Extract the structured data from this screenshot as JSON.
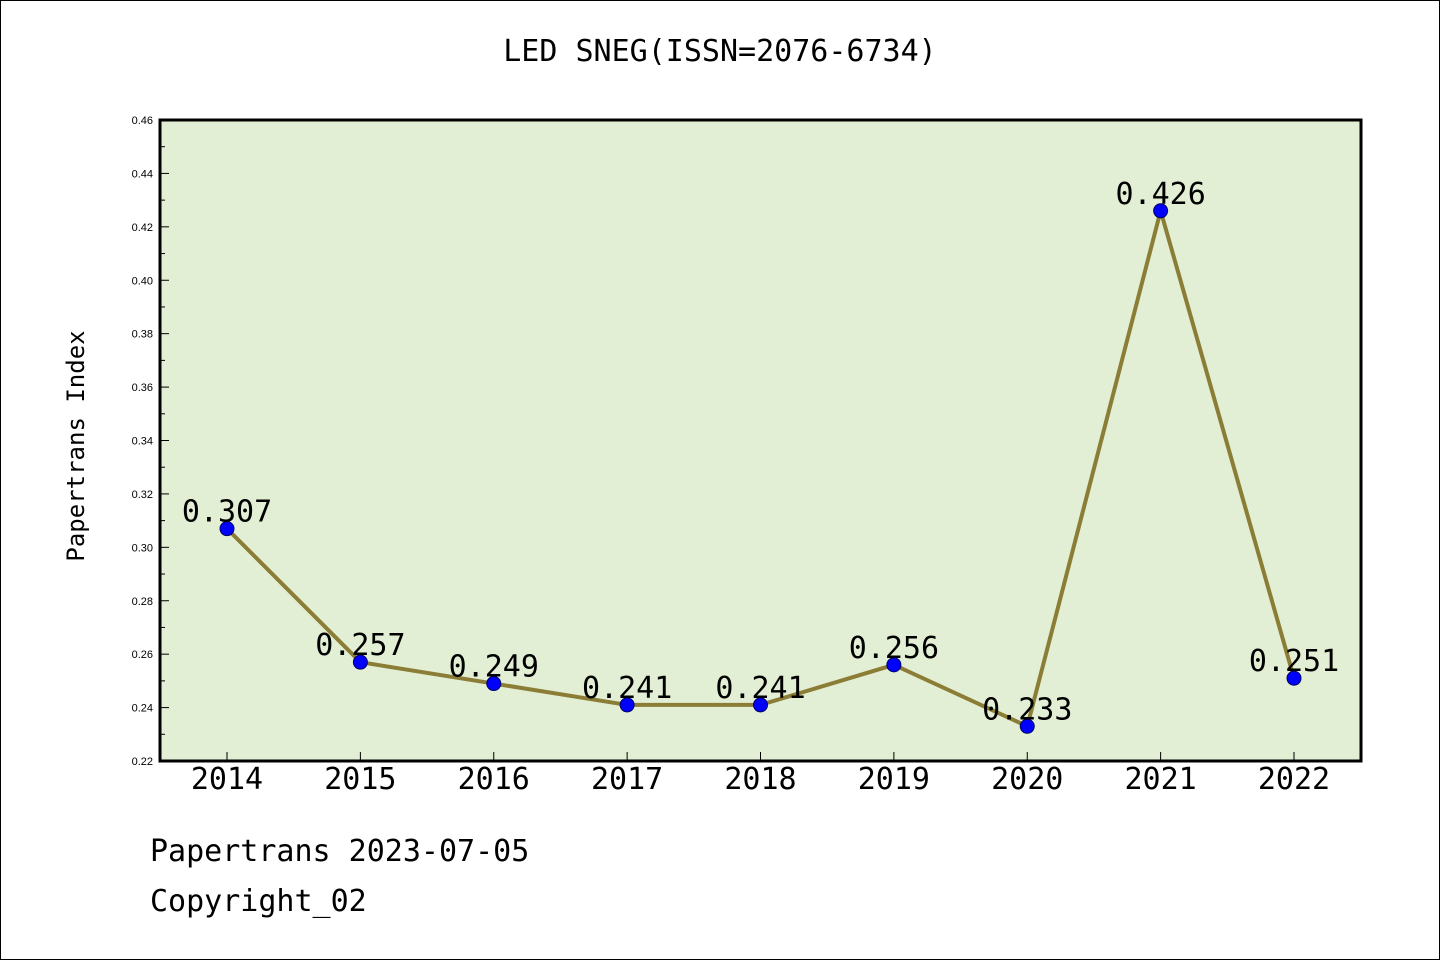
{
  "title": "LED SNEG(ISSN=2076-6734)",
  "footer": {
    "date_text": "Papertrans 2023-07-05",
    "copyright_text": "Copyright_02"
  },
  "colors": {
    "plot_background": "#e2efd4",
    "line": "#8b7d35",
    "marker": "#0000ff",
    "axis": "#000000"
  },
  "chart_data": {
    "type": "line",
    "title": "LED SNEG(ISSN=2076-6734)",
    "xlabel": "",
    "ylabel": "Papertrans Index",
    "categories": [
      "2014",
      "2015",
      "2016",
      "2017",
      "2018",
      "2019",
      "2020",
      "2021",
      "2022"
    ],
    "series": [
      {
        "values": [
          0.307,
          0.257,
          0.249,
          0.241,
          0.241,
          0.256,
          0.233,
          0.426,
          0.251
        ],
        "labels": [
          "0.307",
          "0.257",
          "0.249",
          "0.241",
          "0.241",
          "0.256",
          "0.233",
          "0.426",
          "0.251"
        ]
      }
    ],
    "ylim": [
      0.22,
      0.46
    ],
    "yticks": [
      "0.22",
      "0.24",
      "0.26",
      "0.28",
      "0.30",
      "0.32",
      "0.34",
      "0.36",
      "0.38",
      "0.40",
      "0.42",
      "0.44",
      "0.46"
    ],
    "grid": false,
    "legend": "none"
  }
}
